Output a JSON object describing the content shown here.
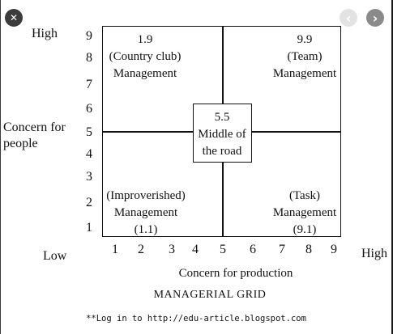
{
  "overlay": {
    "close_glyph": "✕",
    "prev_glyph": "‹",
    "next_glyph": "›"
  },
  "grid": {
    "title": "MANAGERIAL GRID",
    "x_axis_label": "Concern for production",
    "y_axis_label_line1": "Concern for",
    "y_axis_label_line2": "people",
    "y_high": "High",
    "x_low": "Low",
    "x_high": "High",
    "y_ticks": [
      "9",
      "8",
      "7",
      "6",
      "5",
      "4",
      "3",
      "2",
      "1"
    ],
    "x_ticks": [
      "1",
      "2",
      "3",
      "4",
      "5",
      "6",
      "7",
      "8",
      "9"
    ],
    "quadrants": {
      "country_club": {
        "score": "1.9",
        "line1": "(Country club)",
        "line2": "Management"
      },
      "team": {
        "score": "9.9",
        "line1": "(Team)",
        "line2": "Management"
      },
      "impoverished": {
        "line1": "(Improverished)",
        "line2": "Management",
        "score": "(1.1)"
      },
      "task": {
        "line1": "(Task)",
        "line2": "Management",
        "score": "(9.1)"
      },
      "middle": {
        "score": "5.5",
        "line1": "Middle of",
        "line2": "the road"
      }
    }
  },
  "footer": {
    "note": "**Log in to http://edu-article.blogspot.com"
  }
}
